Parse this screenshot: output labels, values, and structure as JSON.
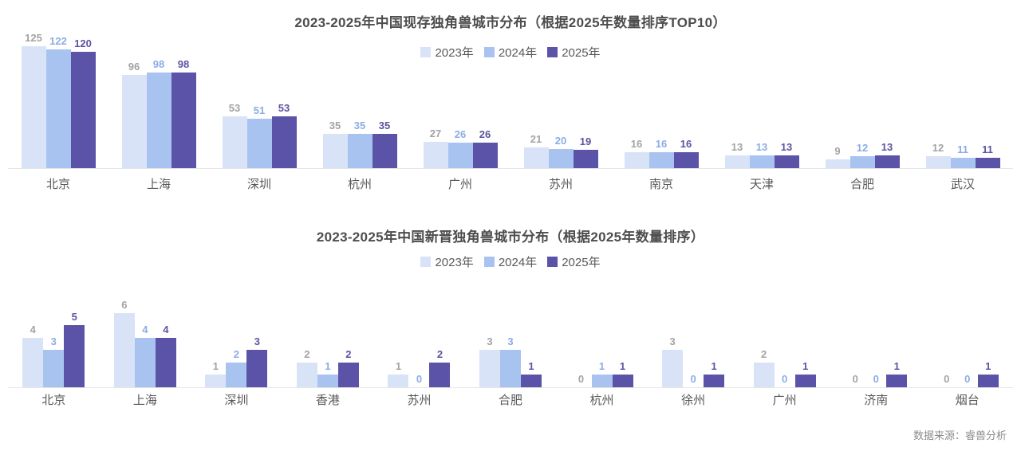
{
  "page": {
    "source_note": "数据来源：睿兽分析"
  },
  "colors": {
    "series": [
      "#D9E3F7",
      "#A9C3F0",
      "#5B53A8"
    ],
    "value_labels": [
      "#A3A3A3",
      "#8AACE5",
      "#5B54A1"
    ],
    "title_text": "#4D4D4D",
    "axis_text": "#595959",
    "axis_line": "#E5E5E5",
    "source_text": "#8C8C8C"
  },
  "chart_data": [
    {
      "type": "bar",
      "title": "2023-2025年中国现存独角兽城市分布（根据2025年数量排序TOP10）",
      "legend": [
        "2023年",
        "2024年",
        "2025年"
      ],
      "legend_position": "top-center",
      "grid": false,
      "data_labels": true,
      "xlabel": "",
      "ylabel": "",
      "ylim": [
        0,
        135
      ],
      "categories": [
        "北京",
        "上海",
        "深圳",
        "杭州",
        "广州",
        "苏州",
        "南京",
        "天津",
        "合肥",
        "武汉"
      ],
      "series": [
        {
          "name": "2023年",
          "values": [
            125,
            96,
            53,
            35,
            27,
            21,
            16,
            13,
            9,
            12
          ]
        },
        {
          "name": "2024年",
          "values": [
            122,
            98,
            51,
            35,
            26,
            20,
            16,
            13,
            12,
            11
          ]
        },
        {
          "name": "2025年",
          "values": [
            120,
            98,
            53,
            35,
            26,
            19,
            16,
            13,
            13,
            11
          ]
        }
      ]
    },
    {
      "type": "bar",
      "title": "2023-2025年中国新晋独角兽城市分布（根据2025年数量排序）",
      "legend": [
        "2023年",
        "2024年",
        "2025年"
      ],
      "legend_position": "top-center",
      "grid": false,
      "data_labels": true,
      "xlabel": "",
      "ylabel": "",
      "ylim": [
        0,
        6.5
      ],
      "categories": [
        "北京",
        "上海",
        "深圳",
        "香港",
        "苏州",
        "合肥",
        "杭州",
        "徐州",
        "广州",
        "济南",
        "烟台"
      ],
      "series": [
        {
          "name": "2023年",
          "values": [
            4,
            6,
            1,
            2,
            1,
            3,
            0,
            3,
            2,
            0,
            0
          ]
        },
        {
          "name": "2024年",
          "values": [
            3,
            4,
            2,
            1,
            0,
            3,
            1,
            0,
            0,
            0,
            0
          ]
        },
        {
          "name": "2025年",
          "values": [
            5,
            4,
            3,
            2,
            2,
            1,
            1,
            1,
            1,
            1,
            1
          ]
        }
      ]
    }
  ]
}
